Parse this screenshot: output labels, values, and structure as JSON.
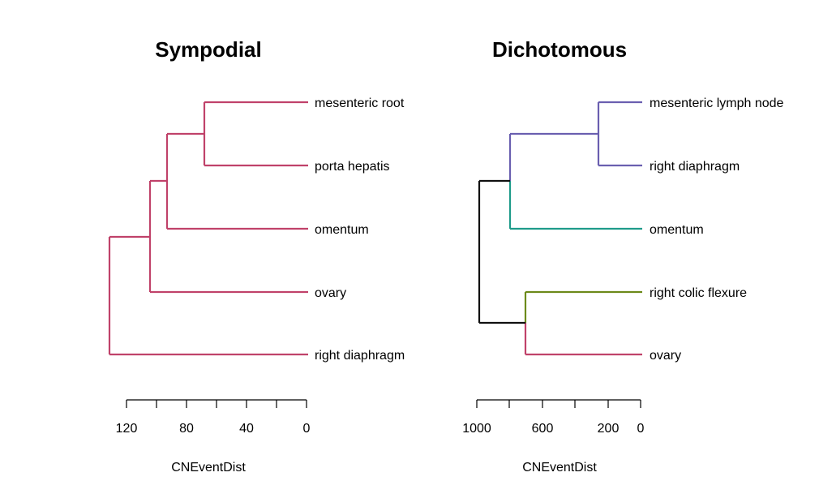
{
  "chart_data": [
    {
      "type": "dendrogram",
      "title": "Sympodial",
      "xlabel": "CNEventDist",
      "xlim": [
        130,
        0
      ],
      "ticks": [
        120,
        100,
        80,
        60,
        40,
        20,
        0
      ],
      "tick_labels": [
        "120",
        "",
        "80",
        "",
        "40",
        "",
        "0"
      ],
      "leaves": [
        "mesenteric root",
        "porta hepatis",
        "omentum",
        "ovary",
        "right diaphragm"
      ],
      "edges": [
        {
          "from": [
            120,
            2.0
          ],
          "to": [
            130,
            2.0
          ],
          "color": "#c0426a"
        },
        {
          "from": [
            120,
            4.0
          ],
          "to": [
            131.5,
            4.0
          ],
          "color": "#c0426a"
        },
        {
          "from": [
            90,
            1.0
          ],
          "to": [
            120,
            1.0
          ],
          "color": "#c0426a"
        },
        {
          "from": [
            90,
            1.5
          ],
          "to": [
            0,
            1.5
          ],
          "color": "#c0426a"
        },
        {
          "from": [
            70,
            0.5
          ],
          "to": [
            90,
            0.5
          ],
          "color": "#c0426a"
        }
      ]
    },
    {
      "type": "dendrogram",
      "title": "Dichotomous",
      "xlabel": "CNEventDist",
      "xlim": [
        1000,
        0
      ],
      "ticks": [
        1000,
        800,
        600,
        400,
        200,
        0
      ],
      "tick_labels": [
        "1000",
        "",
        "600",
        "",
        "200",
        "0"
      ],
      "leaves": [
        "mesenteric lymph node",
        "right diaphragm",
        "omentum",
        "right colic flexure",
        "ovary"
      ]
    }
  ]
}
